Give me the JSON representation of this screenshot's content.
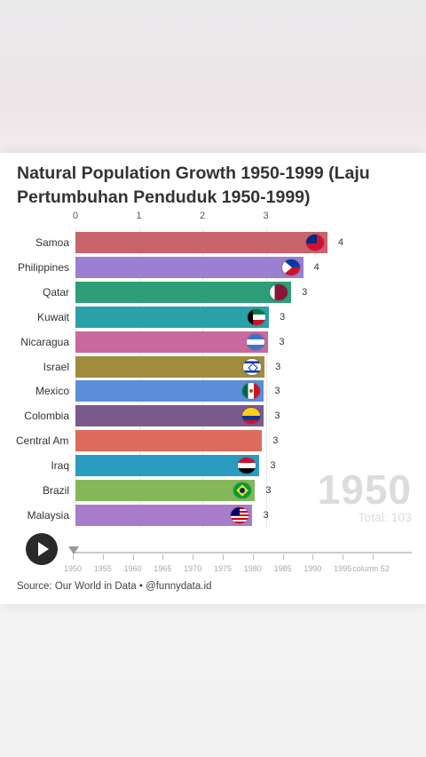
{
  "chart_data": {
    "type": "bar",
    "title": "Natural Population Growth 1950-1999 (Laju Pertumbuhan Penduduk 1950-1999)",
    "xticks": [
      "0",
      "1",
      "2",
      "3"
    ],
    "xlim": [
      0,
      4.2
    ],
    "categories": [
      "Samoa",
      "Philippines",
      "Qatar",
      "Kuwait",
      "Nicaragua",
      "Israel",
      "Mexico",
      "Colombia",
      "Central America",
      "Iraq",
      "Brazil",
      "Malaysia"
    ],
    "values": [
      3.97,
      3.59,
      3.4,
      3.05,
      3.04,
      2.98,
      2.97,
      2.97,
      2.94,
      2.9,
      2.83,
      2.79
    ],
    "value_labels": [
      "4",
      "4",
      "3",
      "3",
      "3",
      "3",
      "3",
      "3",
      "3",
      "3",
      "3",
      "3"
    ],
    "colors": [
      "#c8646c",
      "#9b7fd0",
      "#2e9e78",
      "#2aa0a8",
      "#c86aa0",
      "#a08c3c",
      "#5a8ed6",
      "#7b5a8c",
      "#dc6c5c",
      "#2a9cc0",
      "#86b85a",
      "#a87cc8"
    ],
    "flags": [
      "samoa-flag",
      "philippines-flag",
      "qatar-flag",
      "kuwait-flag",
      "nicaragua-flag",
      "israel-flag",
      "mexico-flag",
      "colombia-flag",
      "",
      "iraq-flag",
      "brazil-flag",
      "malaysia-flag"
    ],
    "year": "1950",
    "total": "Total: 103"
  },
  "timeline": {
    "labels": [
      "1950",
      "1955",
      "1960",
      "1965",
      "1970",
      "1975",
      "1980",
      "1985",
      "1990",
      "1995",
      "column 52"
    ]
  },
  "controls": {
    "play_icon": "play-icon"
  },
  "source": "Source: Our World in Data • @funnydata.id"
}
